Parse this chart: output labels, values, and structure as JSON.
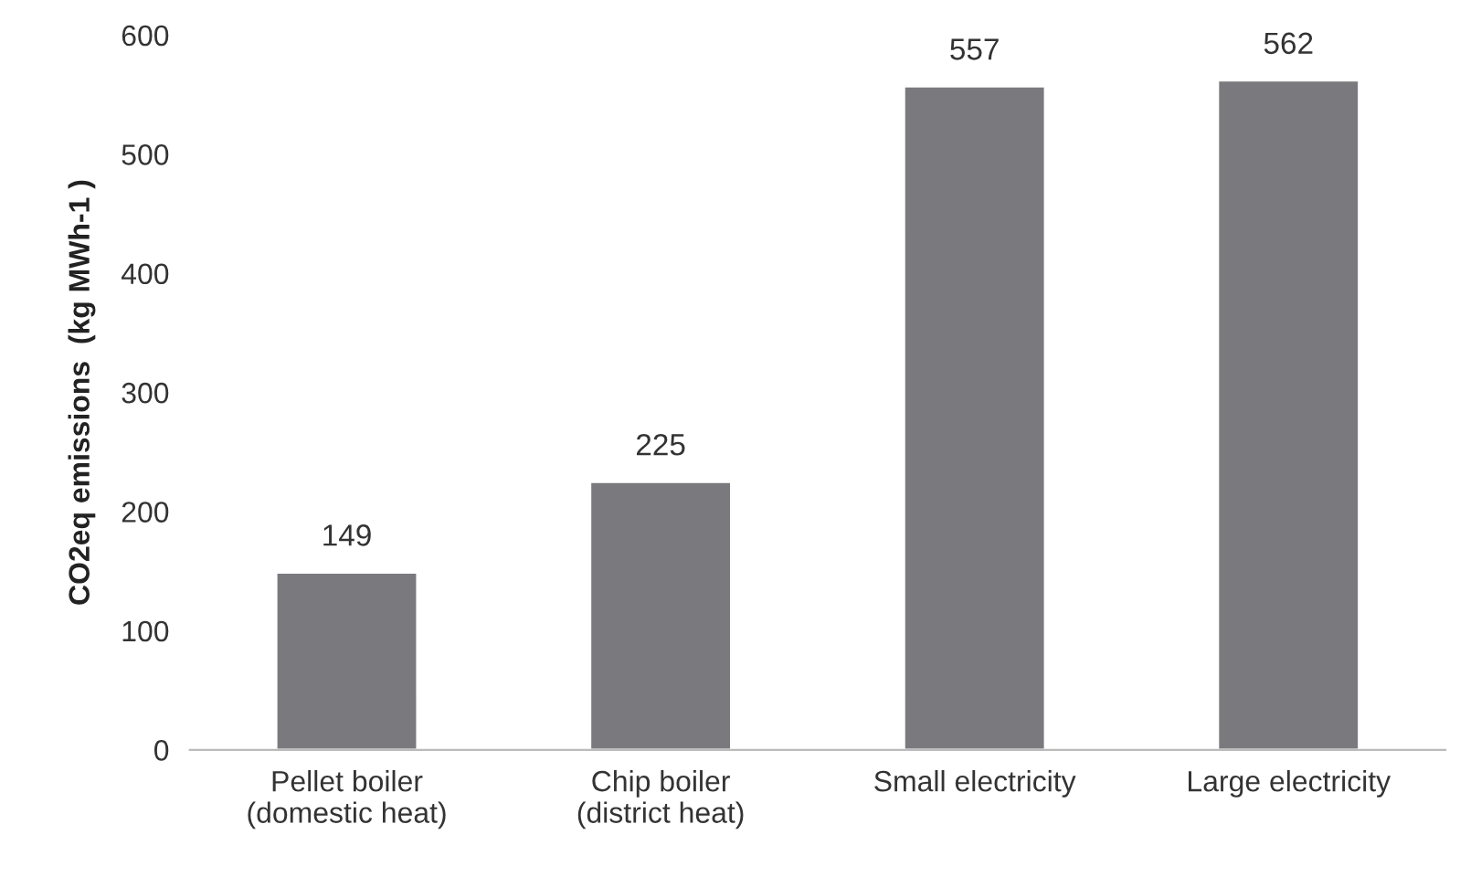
{
  "chart_data": {
    "type": "bar",
    "ylabel": "CO2eq emissions  (kg MWh-1 )",
    "categories": [
      "Pellet boiler\n(domestic heat)",
      "Chip boiler\n(district heat)",
      "Small electricity",
      "Large electricity"
    ],
    "values": [
      149,
      225,
      557,
      562
    ],
    "color": "#7a7a7e",
    "ylim": [
      0,
      600
    ],
    "yticks": [
      0,
      100,
      200,
      300,
      400,
      500,
      600
    ],
    "grid": false,
    "data_labels": true
  }
}
